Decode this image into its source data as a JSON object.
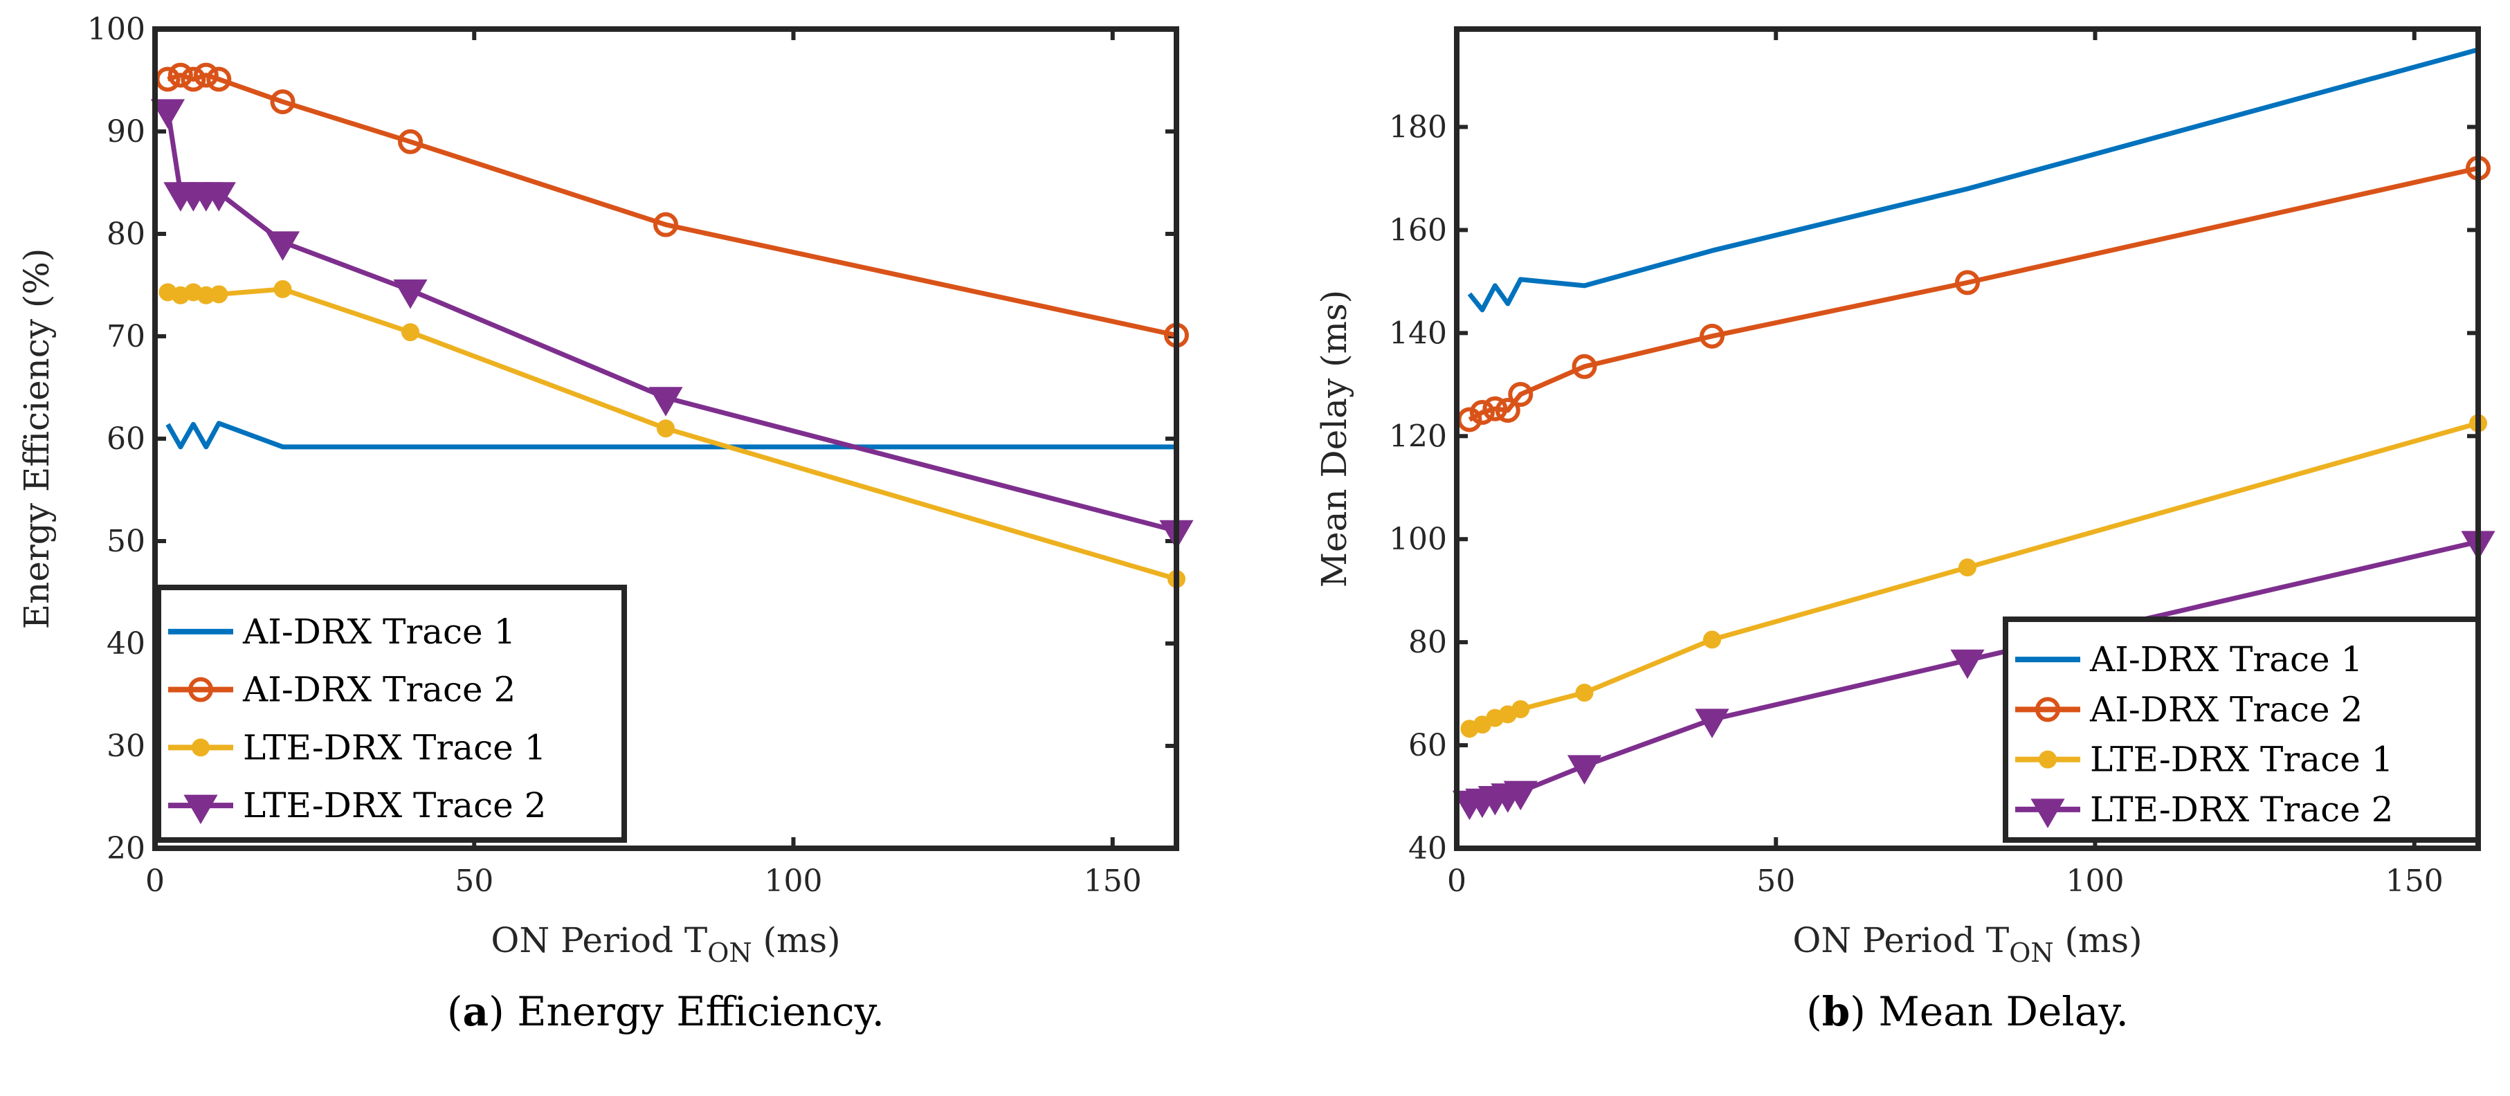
{
  "colors": {
    "ai1": "#0072BD",
    "ai2": "#D95319",
    "lte1": "#EDB120",
    "lte2": "#7E2F8E",
    "frame": "#262626"
  },
  "chart_data": [
    {
      "type": "line",
      "title": "",
      "caption_tag": "a",
      "caption_text": "Energy Efficiency.",
      "xlabel": {
        "main": "ON Period T",
        "sub": "ON",
        "unit": " (ms)"
      },
      "ylabel": "Energy Efficiency (%)",
      "xlim": [
        0,
        160
      ],
      "ylim": [
        20,
        100
      ],
      "xticks": [
        0,
        50,
        100,
        150
      ],
      "yticks": [
        20,
        30,
        40,
        50,
        60,
        70,
        80,
        90,
        100
      ],
      "legend_position": "bottom-left",
      "x": [
        2,
        4,
        6,
        8,
        10,
        20,
        40,
        80,
        160
      ],
      "series": [
        {
          "name": "AI-DRX Trace 1",
          "color_key": "ai1",
          "marker": "none",
          "values": [
            61.4,
            59.2,
            61.4,
            59.2,
            61.5,
            59.2,
            59.2,
            59.2,
            59.2
          ]
        },
        {
          "name": "AI-DRX Trace 2",
          "color_key": "ai2",
          "marker": "circle",
          "values": [
            95.1,
            95.5,
            95.1,
            95.5,
            95.1,
            92.9,
            89.0,
            80.9,
            70.1
          ]
        },
        {
          "name": "LTE-DRX Trace 1",
          "color_key": "lte1",
          "marker": "dot",
          "values": [
            74.3,
            74.0,
            74.3,
            74.0,
            74.1,
            74.6,
            70.4,
            61.0,
            46.3
          ]
        },
        {
          "name": "LTE-DRX Trace 2",
          "color_key": "lte2",
          "marker": "triangle-down",
          "values": [
            92.1,
            84.0,
            84.0,
            84.0,
            84.0,
            79.2,
            74.5,
            64.0,
            51.0
          ]
        }
      ]
    },
    {
      "type": "line",
      "title": "",
      "caption_tag": "b",
      "caption_text": "Mean Delay.",
      "xlabel": {
        "main": "ON Period T",
        "sub": "ON",
        "unit": " (ms)"
      },
      "ylabel": "Mean Delay (ms)",
      "xlim": [
        0,
        160
      ],
      "ylim": [
        40,
        199
      ],
      "xticks": [
        0,
        50,
        100,
        150
      ],
      "yticks": [
        40,
        60,
        80,
        100,
        120,
        140,
        160,
        180
      ],
      "legend_position": "bottom-right",
      "x": [
        2,
        4,
        6,
        8,
        10,
        20,
        40,
        80,
        160
      ],
      "series": [
        {
          "name": "AI-DRX Trace 1",
          "color_key": "ai1",
          "marker": "none",
          "values": [
            147.6,
            144.5,
            149.2,
            145.7,
            150.4,
            149.2,
            156,
            168,
            195
          ]
        },
        {
          "name": "AI-DRX Trace 2",
          "color_key": "ai2",
          "marker": "circle",
          "values": [
            123.2,
            124.6,
            125.3,
            125.0,
            128.1,
            133.5,
            139.4,
            149.8,
            172.0
          ]
        },
        {
          "name": "LTE-DRX Trace 1",
          "color_key": "lte1",
          "marker": "dot",
          "values": [
            63.2,
            64.0,
            65.3,
            66.0,
            67.0,
            70.2,
            80.5,
            94.5,
            122.5
          ]
        },
        {
          "name": "LTE-DRX Trace 2",
          "color_key": "lte2",
          "marker": "triangle-down",
          "values": [
            49.1,
            49.5,
            50.0,
            50.5,
            51.0,
            56.0,
            65.0,
            76.5,
            99.5
          ]
        }
      ]
    }
  ]
}
